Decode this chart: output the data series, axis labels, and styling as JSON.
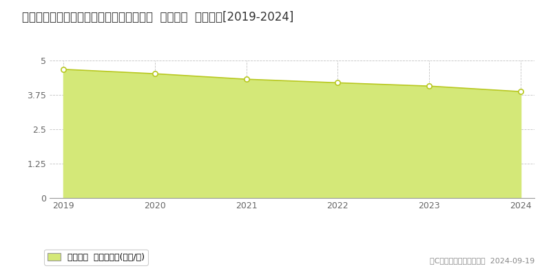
{
  "title": "奈良県吉野郡大淀町大字越部１８７番２外  基準地価  地価推移[2019-2024]",
  "years": [
    2019,
    2020,
    2021,
    2022,
    2023,
    2024
  ],
  "values": [
    4.68,
    4.52,
    4.32,
    4.19,
    4.07,
    3.87
  ],
  "ylim": [
    0,
    5.0
  ],
  "yticks": [
    0,
    1.25,
    2.5,
    3.75,
    5.0
  ],
  "ytick_labels": [
    "0",
    "1.25",
    "2.5",
    "3.75",
    "5"
  ],
  "line_color": "#b8c820",
  "fill_color": "#d4e878",
  "marker_facecolor": "#ffffff",
  "marker_edgecolor": "#b8c820",
  "grid_color": "#bbbbbb",
  "background_color": "#ffffff",
  "legend_label": "基準地価  平均坪単価(万円/坪)",
  "copyright_text": "（C）土地価格ドットコム  2024-09-19",
  "title_fontsize": 12,
  "tick_fontsize": 9,
  "legend_fontsize": 9,
  "copyright_fontsize": 8
}
